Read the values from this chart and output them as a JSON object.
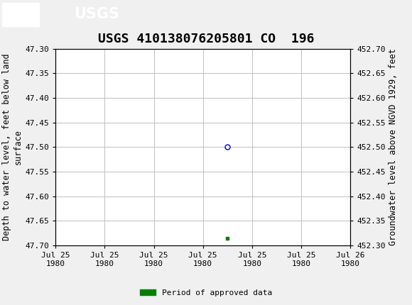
{
  "title": "USGS 410138076205801 CO  196",
  "ylabel_left": "Depth to water level, feet below land\nsurface",
  "ylabel_right": "Groundwater level above NGVD 1929, feet",
  "ylim_left": [
    47.7,
    47.3
  ],
  "ylim_right": [
    452.3,
    452.7
  ],
  "yticks_left": [
    47.3,
    47.35,
    47.4,
    47.45,
    47.5,
    47.55,
    47.6,
    47.65,
    47.7
  ],
  "yticks_right": [
    452.7,
    452.65,
    452.6,
    452.55,
    452.5,
    452.45,
    452.4,
    452.35,
    452.3
  ],
  "data_point_x_num": 3.5,
  "data_point_y": 47.5,
  "approved_marker_x_num": 3.5,
  "approved_marker_y": 47.685,
  "x_min": 0.0,
  "x_max": 6.0,
  "xtick_positions": [
    0.0,
    1.0,
    2.0,
    3.0,
    4.0,
    5.0,
    6.0
  ],
  "xtick_labels": [
    "Jul 25\n1980",
    "Jul 25\n1980",
    "Jul 25\n1980",
    "Jul 25\n1980",
    "Jul 25\n1980",
    "Jul 25\n1980",
    "Jul 26\n1980"
  ],
  "background_color": "#f0f0f0",
  "plot_bg_color": "#ffffff",
  "header_color": "#1a6630",
  "grid_color": "#c0c0c0",
  "marker_color": "#0000cc",
  "approved_color": "#008000",
  "legend_label": "Period of approved data",
  "font_family": "monospace",
  "title_fontsize": 13,
  "axis_label_fontsize": 8.5,
  "tick_fontsize": 8
}
